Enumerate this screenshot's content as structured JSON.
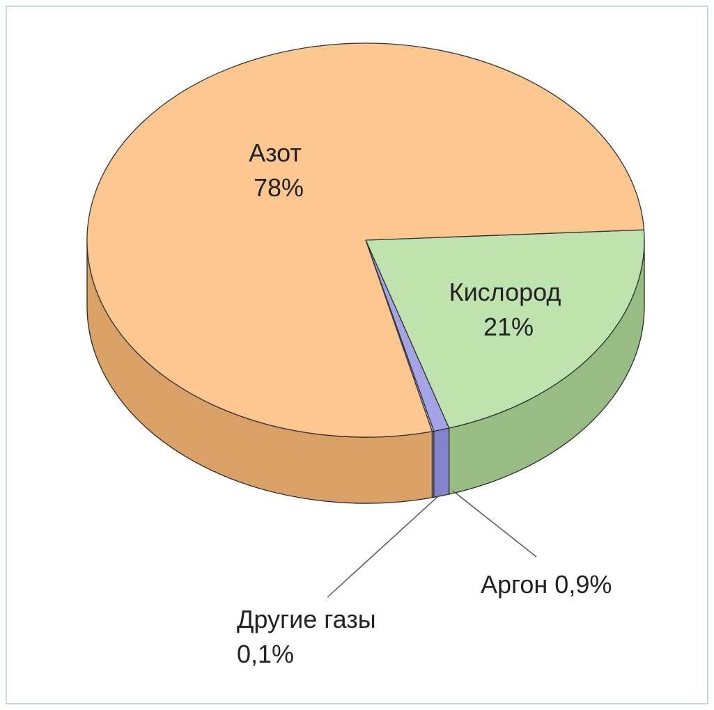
{
  "chart_data": {
    "type": "pie",
    "categories": [
      "Кислород",
      "Аргон",
      "Другие газы",
      "Азот"
    ],
    "values": [
      21,
      0.9,
      0.1,
      78
    ],
    "value_labels": [
      "21%",
      "0,9%",
      "0,1%",
      "78%"
    ],
    "colors": [
      "#bfe3ae",
      "#a3a3e6",
      "#c9c9f0",
      "#fbc68f"
    ]
  }
}
